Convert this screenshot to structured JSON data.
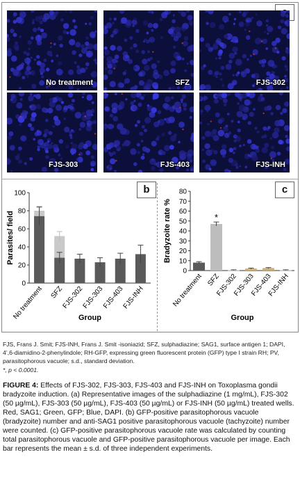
{
  "panel_a": {
    "letter": "a",
    "images": [
      {
        "label": "No treatment"
      },
      {
        "label": "SFZ"
      },
      {
        "label": "FJS-302"
      },
      {
        "label": "FJS-303"
      },
      {
        "label": "FJS-403"
      },
      {
        "label": "FJS-INH"
      }
    ]
  },
  "chart_data": [
    {
      "panel": "b",
      "type": "bar",
      "ylabel": "Parasites/ field",
      "xlabel": "Group",
      "ylim": [
        0,
        100
      ],
      "yticks": [
        0,
        20,
        40,
        60,
        80,
        100
      ],
      "categories": [
        "No treatment",
        "SFZ",
        "FJS-302",
        "FJS-303",
        "FJS-403",
        "FJS-INH"
      ],
      "series": [
        {
          "color": "#c9c9c9",
          "values": [
            80,
            52,
            null,
            null,
            null,
            null
          ],
          "errors": [
            5,
            5,
            null,
            null,
            null,
            null
          ]
        },
        {
          "color": "#5a5a5a",
          "values": [
            74,
            28,
            27,
            23,
            27,
            32
          ],
          "errors": [
            10,
            6,
            5,
            5,
            6,
            10
          ]
        }
      ]
    },
    {
      "panel": "c",
      "type": "bar",
      "ylabel": "Bradyzoite rate %",
      "xlabel": "Group",
      "ylim": [
        0,
        80
      ],
      "yticks": [
        0,
        10,
        20,
        30,
        40,
        50,
        60,
        70,
        80
      ],
      "categories": [
        "No treatment",
        "SFZ",
        "FJS-302",
        "FJS-303",
        "FJS-403",
        "FJS-INH"
      ],
      "values": [
        8,
        47,
        0.5,
        2,
        2.5,
        0.5
      ],
      "errors": [
        1,
        2,
        0.3,
        0.5,
        0.5,
        0.3
      ],
      "colors": [
        "#5a5a5a",
        "#bdbdbd",
        "#cccccc",
        "#c8b07a",
        "#c8b07a",
        "#cccccc"
      ],
      "annotation": "*"
    }
  ],
  "panel_b_letter": "b",
  "panel_c_letter": "c",
  "abbrev": "FJS, Frans J. Smit; FJS-INH, Frans J. Smit -isoniazid; SFZ, sulphadiazine; SAG1, surface antigen 1; DAPI, 4’,6-diamidino-2-phenylindole; RH-GFP, expressing green fluorescent protein (GFP) type I strain RH; PV, parasitophorous vacuole; s.d., standard deviation.",
  "pvalue": "*, p < 0.0001.",
  "caption_title": "FIGURE 4:",
  "caption_text": " Effects of FJS-302, FJS-303, FJS-403 and FJS-INH on Toxoplasma gondii bradyzoite induction. (a) Representative images of the sulphadiazine (1 mg/mL), FJS-302 (50 µg/mL), FJS-303 (50 µg/mL), FJS-403 (50 µg/mL) or FJS-INH (50 µg/mL) treated wells. Red, SAG1; Green, GFP; Blue, DAPI. (b) GFP-positive parasitophorous vacuole (bradyzoite) number and anti-SAG1 positive parasitophorous vacuole (tachyzoite) number were counted. (c) GFP-positive parasitophorous vacuole rate was calculated by counting total parasitophorous vacuole and GFP-positive parasitophorous vacuole per image. Each bar represents the mean ± s.d. of three independent experiments."
}
